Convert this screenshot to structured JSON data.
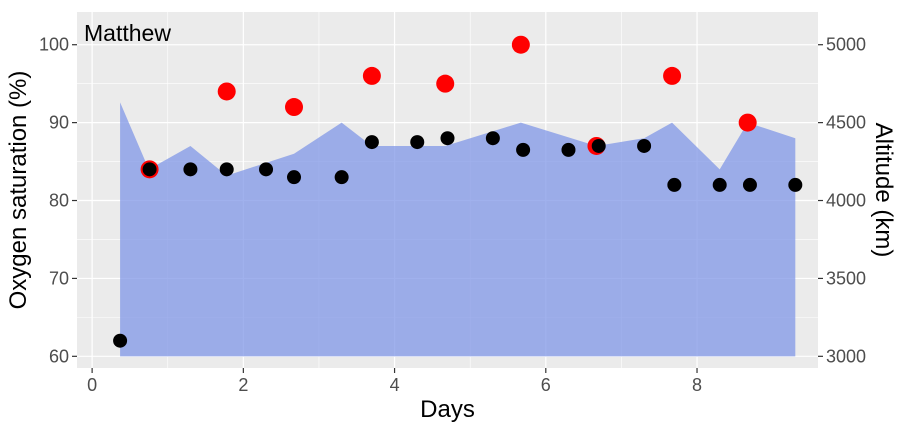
{
  "chart_data": {
    "type": "scatter",
    "annotation": "Matthew",
    "xlabel": "Days",
    "ylabel_left": "Oxygen saturation (%)",
    "ylabel_right": "Altitude (km)",
    "xlim": [
      -0.2,
      9.6
    ],
    "ylim_left": [
      58.5,
      104.2
    ],
    "ylim_right": [
      2925,
      5210
    ],
    "x_ticks": [
      0,
      2,
      4,
      6,
      8
    ],
    "y_ticks_left": [
      60,
      70,
      80,
      90,
      100
    ],
    "y_ticks_right": [
      3000,
      3500,
      4000,
      4500,
      5000
    ],
    "grid": true,
    "legend": "none",
    "colors": {
      "panel": "#ebebeb",
      "grid": "#ffffff",
      "area": "#7b93e6",
      "black_points": "#000000",
      "red_points": "#ff0000"
    },
    "series": [
      {
        "type": "area",
        "axis": "right",
        "x": [
          0.37,
          0.75,
          1.3,
          1.78,
          2.67,
          3.3,
          3.7,
          4.67,
          5.67,
          6.67,
          7.3,
          7.67,
          8.3,
          8.67,
          9.3
        ],
        "y": [
          4630,
          4200,
          4350,
          4160,
          4300,
          4500,
          4350,
          4350,
          4500,
          4350,
          4400,
          4500,
          4200,
          4500,
          4400
        ],
        "baseline": 3000
      },
      {
        "type": "points",
        "color": "#000000",
        "x": [
          0.37,
          0.76,
          1.3,
          1.78,
          2.3,
          2.67,
          3.3,
          3.7,
          4.3,
          4.7,
          5.3,
          5.7,
          6.3,
          6.7,
          7.3,
          7.7,
          8.3,
          8.7,
          9.3
        ],
        "y": [
          62,
          84,
          84,
          84,
          84,
          83,
          83,
          87.5,
          87.5,
          88,
          88,
          86.5,
          86.5,
          87,
          87,
          82,
          82,
          82,
          82
        ]
      },
      {
        "type": "points",
        "color": "#ff0000",
        "x": [
          0.76,
          1.78,
          2.67,
          3.7,
          4.67,
          5.67,
          6.67,
          7.67,
          8.67
        ],
        "y": [
          84,
          94,
          92,
          96,
          95,
          100,
          87,
          96,
          90
        ]
      }
    ]
  }
}
